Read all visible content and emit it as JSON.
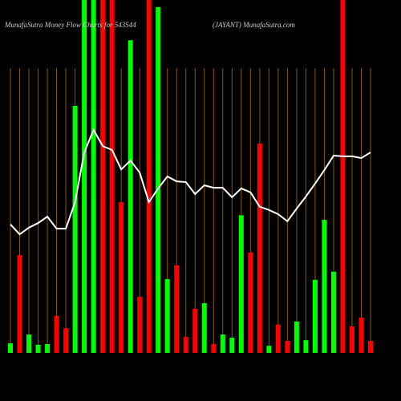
{
  "chart_data": {
    "type": "bar-line",
    "title": "MunafaSutra  Money Flow Charts for 543544",
    "subtitle": "(JAYANT) MunafaSutra.com",
    "categories": [
      null,
      null,
      null,
      null,
      null,
      null,
      null,
      null,
      null,
      null,
      null,
      null,
      null,
      null,
      null,
      null,
      null,
      null,
      null,
      null,
      null,
      null,
      null,
      null,
      null,
      null,
      null,
      null,
      null,
      null,
      null,
      null,
      null,
      null,
      null,
      null,
      null,
      null,
      null,
      null
    ],
    "ylim": [
      0,
      100
    ],
    "series": [
      {
        "kind": "bar",
        "values": [
          2.7,
          27.7,
          5.2,
          2.3,
          2.5,
          10.5,
          7,
          70,
          100,
          100,
          100,
          100,
          42.7,
          88.6,
          15.9,
          100,
          98,
          20.9,
          24.8,
          4.5,
          12.5,
          14.1,
          2.5,
          5.2,
          4.3,
          39,
          28.4,
          59.3,
          2,
          8,
          3.4,
          8.9,
          3.6,
          20.7,
          37.7,
          23,
          100,
          7.5,
          10,
          3.4
        ],
        "colors": [
          "#00ff00",
          "#ff0000",
          "#00ff00",
          "#00ff00",
          "#00ff00",
          "#ff0000",
          "#ff0000",
          "#00ff00",
          "#00ff00",
          "#00ff00",
          "#ff0000",
          "#ff0000",
          "#ff0000",
          "#00ff00",
          "#ff0000",
          "#ff0000",
          "#00ff00",
          "#00ff00",
          "#ff0000",
          "#ff0000",
          "#ff0000",
          "#00ff00",
          "#ff0000",
          "#00ff00",
          "#00ff00",
          "#00ff00",
          "#ff0000",
          "#ff0000",
          "#00ff00",
          "#ff0000",
          "#ff0000",
          "#00ff00",
          "#00ff00",
          "#00ff00",
          "#00ff00",
          "#00ff00",
          "#ff0000",
          "#ff0000",
          "#ff0000",
          "#ff0000"
        ]
      },
      {
        "kind": "line",
        "color": "#ffffff",
        "values": [
          36.4,
          33.6,
          35.5,
          36.8,
          38.6,
          35.2,
          35.2,
          42.7,
          56.8,
          63.2,
          58.6,
          57.5,
          52,
          54.5,
          51.1,
          42.7,
          46.6,
          50,
          48.6,
          48.4,
          45,
          47.5,
          46.8,
          46.8,
          44.1,
          46.6,
          45.5,
          41.4,
          40.5,
          39.3,
          37.3,
          40.9,
          44.3,
          48,
          51.8,
          55.9,
          55.7,
          55.7,
          55.2,
          56.8
        ]
      }
    ]
  }
}
